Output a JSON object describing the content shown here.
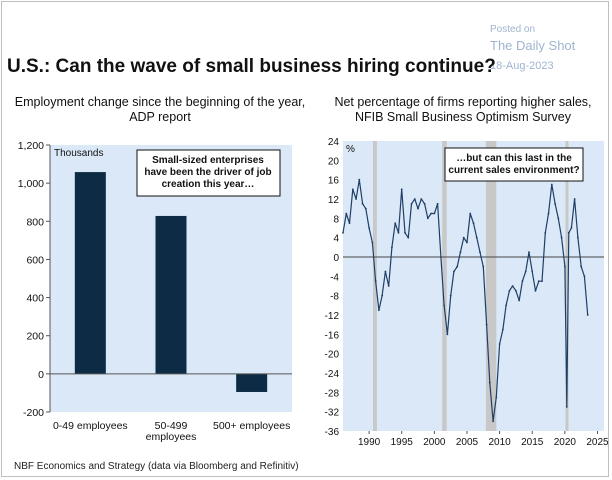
{
  "header": {
    "title": "U.S.: Can the wave of small business hiring continue?",
    "watermark_posted": "Posted on",
    "watermark_source": "The Daily Shot",
    "watermark_date": "18-Aug-2023"
  },
  "footnote": "NBF Economics and Strategy (data via Bloomberg and Refinitiv)",
  "chart_data": [
    {
      "type": "bar",
      "title": "Employment change since the beginning of the year, ADP report",
      "title_lines": [
        "Employment change since the beginning of the year,",
        "ADP report"
      ],
      "unit_label": "Thousands",
      "categories": [
        "0-49 employees",
        "50-499 employees",
        "500+ employees"
      ],
      "category_lines": [
        [
          "0-49 employees"
        ],
        [
          "50-499",
          "employees"
        ],
        [
          "500+ employees"
        ]
      ],
      "values": [
        1058,
        828,
        -95
      ],
      "ylim": [
        -200,
        1200
      ],
      "yticks": [
        -200,
        0,
        200,
        400,
        600,
        800,
        1000,
        1200
      ],
      "ytick_labels": [
        "-200",
        "0",
        "200",
        "400",
        "600",
        "800",
        "1,000",
        "1,200"
      ],
      "annotation": [
        "Small-sized enterprises",
        "have been the driver of job",
        "creation this year…"
      ],
      "colors": {
        "bar": "#0d2b45",
        "background": "#dbe8f8"
      }
    },
    {
      "type": "line",
      "title": "Net percentage of firms reporting higher sales, NFIB Small Business Optimism Survey",
      "title_lines": [
        "Net percentage of firms reporting higher sales,",
        "NFIB Small Business Optimism Survey"
      ],
      "unit_label": "%",
      "ylim": [
        -36,
        24
      ],
      "yticks": [
        -36,
        -32,
        -28,
        -24,
        -20,
        -16,
        -12,
        -8,
        -4,
        0,
        4,
        8,
        12,
        16,
        20,
        24
      ],
      "xlim": [
        1986,
        2026
      ],
      "xticks": [
        1990,
        1995,
        2000,
        2005,
        2010,
        2015,
        2020,
        2025
      ],
      "recessions": [
        [
          1990.6,
          1991.2
        ],
        [
          2001.2,
          2001.9
        ],
        [
          2007.9,
          2009.5
        ],
        [
          2020.1,
          2020.4
        ]
      ],
      "annotation": [
        "…but can this last in the",
        "current sales environment?"
      ],
      "colors": {
        "line": "#1f3f66",
        "recession": "#c8c8c8",
        "background": "#dbe8f8"
      },
      "series": [
        {
          "name": "Net % higher sales",
          "x": [
            1986.0,
            1986.5,
            1987.0,
            1987.5,
            1988.0,
            1988.5,
            1989.0,
            1989.5,
            1990.0,
            1990.5,
            1991.0,
            1991.5,
            1992.0,
            1992.5,
            1993.0,
            1993.5,
            1994.0,
            1994.5,
            1995.0,
            1995.5,
            1996.0,
            1996.5,
            1997.0,
            1997.5,
            1998.0,
            1998.5,
            1999.0,
            1999.5,
            2000.0,
            2000.5,
            2001.0,
            2001.5,
            2002.0,
            2002.5,
            2003.0,
            2003.5,
            2004.0,
            2004.5,
            2005.0,
            2005.5,
            2006.0,
            2006.5,
            2007.0,
            2007.5,
            2008.0,
            2008.5,
            2009.0,
            2009.5,
            2010.0,
            2010.5,
            2011.0,
            2011.5,
            2012.0,
            2012.5,
            2013.0,
            2013.5,
            2014.0,
            2014.5,
            2015.0,
            2015.5,
            2016.0,
            2016.5,
            2017.0,
            2017.5,
            2018.0,
            2018.5,
            2019.0,
            2019.5,
            2020.0,
            2020.3,
            2020.6,
            2021.0,
            2021.5,
            2022.0,
            2022.5,
            2023.0,
            2023.5
          ],
          "values": [
            5,
            9,
            7,
            14,
            12,
            16,
            11,
            10,
            6,
            3,
            -5,
            -11,
            -8,
            -3,
            -6,
            2,
            7,
            5,
            14,
            5,
            4,
            11,
            12,
            10,
            12,
            11,
            8,
            9,
            9,
            11,
            0,
            -10,
            -16,
            -8,
            -3,
            -2,
            1,
            4,
            3,
            9,
            7,
            4,
            1,
            -2,
            -14,
            -26,
            -34,
            -29,
            -18,
            -15,
            -10,
            -7,
            -6,
            -7,
            -9,
            -5,
            -3,
            1,
            -3,
            -7,
            -5,
            -5,
            5,
            9,
            15,
            11,
            8,
            4,
            -2,
            -31,
            5,
            6,
            12,
            4,
            -2,
            -4,
            -12
          ]
        }
      ]
    }
  ]
}
